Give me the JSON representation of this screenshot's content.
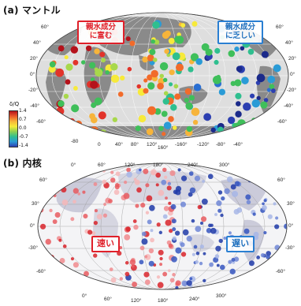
{
  "panel_a": {
    "label": "(a) マントル",
    "callout_left": [
      "親水成分",
      "に富む"
    ],
    "callout_right": [
      "親水成分",
      "に乏しい"
    ],
    "colorbar_title": "δ/Q",
    "colorbar_ticks": [
      "1.4",
      "0.7",
      "0.0",
      "-0.7",
      "-1.4"
    ],
    "lat_left": [
      "60°",
      "40°",
      "20°",
      "0°",
      "-20°",
      "-40°",
      "-60°"
    ],
    "lat_right": [
      "60°",
      "40°",
      "20°",
      "0°",
      "-20°",
      "-40°",
      "-60°"
    ],
    "lon_bottom": [
      "-80",
      "0",
      "40°",
      "80°",
      "120°",
      "160°",
      "-160°",
      "-120°",
      "-80°",
      "-40°"
    ]
  },
  "panel_b": {
    "label": "(b) 内核",
    "callout_left": "速い",
    "callout_right": "遅い",
    "lon_top": [
      "0°",
      "60°",
      "120°",
      "180°",
      "240°",
      "300°"
    ],
    "lon_bottom": [
      "0°",
      "60°",
      "120°",
      "180°",
      "240°",
      "300°"
    ],
    "lat_left": [
      "60°",
      "30°",
      "0°",
      "-30°",
      "-60°"
    ],
    "lat_right": [
      "60°",
      "30°",
      "0°",
      "-30°",
      "-60°"
    ]
  }
}
